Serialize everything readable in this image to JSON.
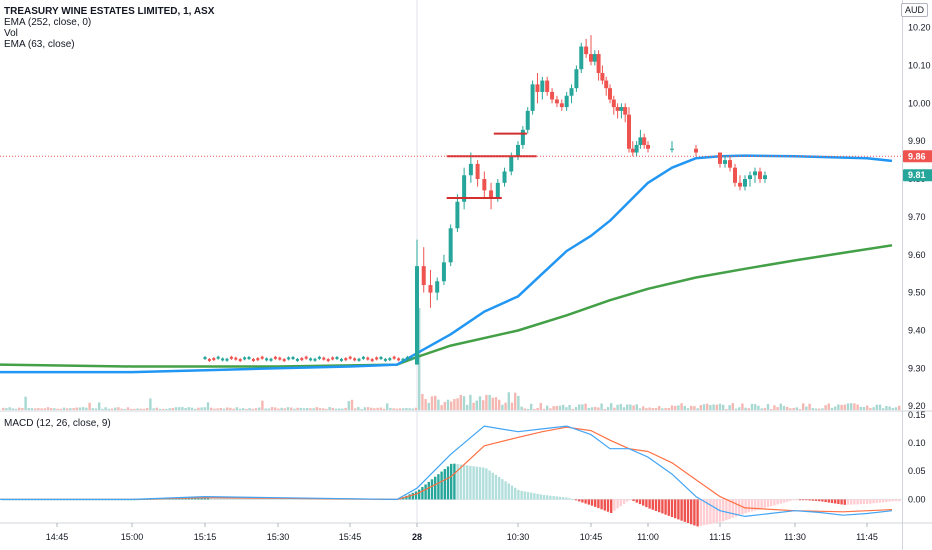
{
  "legend": {
    "symbol": "TREASURY WINE ESTATES LIMITED, 1, ASX",
    "ema1": "EMA (252, close, 0)",
    "vol": "Vol",
    "ema2": "EMA (63, close)",
    "macd": "MACD (12, 26, close, 9)"
  },
  "currency": "AUD",
  "colors": {
    "up": "#26a69a",
    "down": "#ef5350",
    "ema_fast": "#2196f3",
    "ema_slow": "#43a047",
    "macd_line": "#42a5f5",
    "signal_line": "#ff7043",
    "hist_up_strong": "#26a69a",
    "hist_up_weak": "#b2dfdb",
    "hist_down_strong": "#ef5350",
    "hist_down_weak": "#ffcdd2",
    "level_line": "#d32f2f",
    "price_tag": "#ef5350",
    "last_tag": "#26a69a"
  },
  "chart_data": [
    {
      "type": "candlestick",
      "title": "TREASURY WINE ESTATES LIMITED, 1, ASX",
      "y_axis": {
        "ticks": [
          "10.20",
          "10.10",
          "10.00",
          "9.90",
          "9.80",
          "9.70",
          "9.60",
          "9.50",
          "9.40",
          "9.30",
          "9.20"
        ],
        "ylim": [
          9.19,
          10.22
        ]
      },
      "x_axis": {
        "ticks": [
          "14:45",
          "15:00",
          "15:15",
          "15:30",
          "15:45",
          "28",
          "10:30",
          "10:45",
          "11:00",
          "11:15",
          "11:30",
          "11:45"
        ]
      },
      "price_labels": {
        "marker": "9.86",
        "last": "9.81"
      },
      "horizontal_levels": [
        {
          "price": 9.92,
          "from": "10:27",
          "to": "10:31"
        },
        {
          "price": 9.86,
          "from": "10:20",
          "to": "10:33"
        },
        {
          "price": 9.75,
          "from": "10:20",
          "to": "10:27"
        }
      ],
      "series": [
        {
          "name": "EMA (252, close, 0)",
          "x": [
            "14:35",
            "14:45",
            "15:00",
            "15:15",
            "15:30",
            "15:45",
            "15:55",
            "10:15",
            "10:20",
            "10:25",
            "10:30",
            "10:35",
            "10:40",
            "10:45",
            "10:50",
            "10:55",
            "11:00",
            "11:05",
            "11:10",
            "11:15",
            "11:20",
            "11:30",
            "11:45",
            "11:50"
          ],
          "values": [
            9.29,
            9.29,
            9.29,
            9.295,
            9.3,
            9.305,
            9.31,
            9.34,
            9.39,
            9.45,
            9.49,
            9.55,
            9.61,
            9.65,
            9.69,
            9.74,
            9.79,
            9.83,
            9.855,
            9.86,
            9.862,
            9.86,
            9.855,
            9.848
          ]
        },
        {
          "name": "EMA (63, close)",
          "x": [
            "14:35",
            "15:00",
            "15:30",
            "15:55",
            "10:15",
            "10:20",
            "10:30",
            "10:40",
            "10:50",
            "11:00",
            "11:10",
            "11:20",
            "11:30",
            "11:40",
            "11:50"
          ],
          "values": [
            9.31,
            9.305,
            9.305,
            9.31,
            9.33,
            9.36,
            9.4,
            9.44,
            9.48,
            9.51,
            9.54,
            9.563,
            9.585,
            9.605,
            9.625
          ]
        }
      ],
      "ohlc": [
        [
          "15:15",
          9.31,
          9.32,
          9.31,
          9.32
        ],
        [
          "15:20",
          9.32,
          9.34,
          9.31,
          9.33
        ],
        [
          "15:30",
          9.32,
          9.33,
          9.31,
          9.32
        ],
        [
          "15:45",
          9.32,
          9.33,
          9.31,
          9.33
        ],
        [
          "10:15",
          9.31,
          9.64,
          9.31,
          9.57
        ],
        [
          "10:16",
          9.57,
          9.62,
          9.5,
          9.52
        ],
        [
          "10:17",
          9.52,
          9.56,
          9.46,
          9.5
        ],
        [
          "10:18",
          9.5,
          9.54,
          9.48,
          9.53
        ],
        [
          "10:19",
          9.53,
          9.6,
          9.52,
          9.58
        ],
        [
          "10:20",
          9.58,
          9.68,
          9.57,
          9.67
        ],
        [
          "10:21",
          9.67,
          9.76,
          9.66,
          9.74
        ],
        [
          "10:22",
          9.74,
          9.83,
          9.72,
          9.81
        ],
        [
          "10:23",
          9.81,
          9.87,
          9.79,
          9.84
        ],
        [
          "10:24",
          9.84,
          9.85,
          9.78,
          9.8
        ],
        [
          "10:25",
          9.8,
          9.82,
          9.75,
          9.77
        ],
        [
          "10:26",
          9.77,
          9.79,
          9.72,
          9.75
        ],
        [
          "10:27",
          9.75,
          9.8,
          9.74,
          9.79
        ],
        [
          "10:28",
          9.79,
          9.83,
          9.78,
          9.82
        ],
        [
          "10:29",
          9.82,
          9.87,
          9.81,
          9.86
        ],
        [
          "10:30",
          9.86,
          9.9,
          9.85,
          9.89
        ],
        [
          "10:31",
          9.89,
          9.94,
          9.88,
          9.93
        ],
        [
          "10:32",
          9.93,
          9.99,
          9.92,
          9.98
        ],
        [
          "10:33",
          9.98,
          10.06,
          9.97,
          10.05
        ],
        [
          "10:34",
          10.05,
          10.08,
          10.0,
          10.03
        ],
        [
          "10:35",
          10.03,
          10.07,
          10.01,
          10.06
        ],
        [
          "10:36",
          10.06,
          10.07,
          10.02,
          10.03
        ],
        [
          "10:37",
          10.03,
          10.04,
          10.0,
          10.01
        ],
        [
          "10:38",
          10.01,
          10.02,
          9.99,
          10.0
        ],
        [
          "10:39",
          10.0,
          10.01,
          9.98,
          9.99
        ],
        [
          "10:40",
          9.99,
          10.03,
          9.98,
          10.02
        ],
        [
          "10:41",
          10.02,
          10.05,
          10.0,
          10.04
        ],
        [
          "10:42",
          10.04,
          10.1,
          10.03,
          10.09
        ],
        [
          "10:43",
          10.09,
          10.16,
          10.08,
          10.15
        ],
        [
          "10:44",
          10.15,
          10.17,
          10.12,
          10.13
        ],
        [
          "10:45",
          10.13,
          10.18,
          10.1,
          10.11
        ],
        [
          "10:46",
          10.11,
          10.14,
          10.1,
          10.13
        ],
        [
          "10:47",
          10.13,
          10.14,
          10.06,
          10.08
        ],
        [
          "10:48",
          10.08,
          10.1,
          10.05,
          10.06
        ],
        [
          "10:49",
          10.06,
          10.07,
          10.02,
          10.04
        ],
        [
          "10:50",
          10.04,
          10.05,
          10.0,
          10.01
        ],
        [
          "10:51",
          10.01,
          10.02,
          9.97,
          9.99
        ],
        [
          "10:52",
          9.99,
          10.0,
          9.96,
          9.98
        ],
        [
          "10:53",
          9.98,
          10.0,
          9.96,
          9.99
        ],
        [
          "10:54",
          9.99,
          10.0,
          9.95,
          9.97
        ],
        [
          "10:55",
          9.97,
          9.99,
          9.87,
          9.88
        ],
        [
          "10:56",
          9.88,
          9.9,
          9.86,
          9.87
        ],
        [
          "10:57",
          9.87,
          9.9,
          9.86,
          9.89
        ],
        [
          "10:58",
          9.89,
          9.93,
          9.88,
          9.91
        ],
        [
          "10:59",
          9.91,
          9.92,
          9.88,
          9.89
        ],
        [
          "11:00",
          9.89,
          9.9,
          9.87,
          9.88
        ],
        [
          "11:05",
          9.88,
          9.9,
          9.87,
          9.88
        ],
        [
          "11:10",
          9.88,
          9.89,
          9.86,
          9.87
        ],
        [
          "11:15",
          9.87,
          9.87,
          9.83,
          9.84
        ],
        [
          "11:16",
          9.84,
          9.86,
          9.83,
          9.85
        ],
        [
          "11:17",
          9.85,
          9.86,
          9.82,
          9.83
        ],
        [
          "11:18",
          9.83,
          9.84,
          9.78,
          9.79
        ],
        [
          "11:19",
          9.79,
          9.81,
          9.77,
          9.78
        ],
        [
          "11:20",
          9.78,
          9.81,
          9.77,
          9.8
        ],
        [
          "11:21",
          9.8,
          9.82,
          9.78,
          9.81
        ],
        [
          "11:22",
          9.81,
          9.83,
          9.79,
          9.82
        ],
        [
          "11:23",
          9.82,
          9.83,
          9.79,
          9.8
        ],
        [
          "11:24",
          9.8,
          9.82,
          9.79,
          9.81
        ]
      ]
    },
    {
      "type": "bar",
      "title": "Vol",
      "note": "volume histogram",
      "spike": "10:15"
    },
    {
      "type": "line",
      "title": "MACD (12, 26, close, 9)",
      "y_axis": {
        "ticks": [
          "0.15",
          "0.10",
          "0.05",
          "0.00"
        ],
        "ylim": [
          -0.04,
          0.155
        ]
      },
      "series": [
        {
          "name": "MACD",
          "x": [
            "14:35",
            "15:00",
            "15:15",
            "15:30",
            "15:55",
            "10:15",
            "10:20",
            "10:25",
            "10:30",
            "10:35",
            "10:40",
            "10:45",
            "10:50",
            "10:55",
            "11:00",
            "11:05",
            "11:10",
            "11:15",
            "11:20",
            "11:25",
            "11:30",
            "11:35",
            "11:40",
            "11:45",
            "11:50"
          ],
          "values": [
            0.0,
            0.0,
            0.005,
            0.003,
            0.0,
            0.02,
            0.08,
            0.13,
            0.12,
            0.125,
            0.13,
            0.115,
            0.09,
            0.09,
            0.075,
            0.045,
            0.005,
            -0.02,
            -0.03,
            -0.025,
            -0.02,
            -0.023,
            -0.028,
            -0.025,
            -0.02
          ]
        },
        {
          "name": "Signal",
          "x": [
            "14:35",
            "15:00",
            "15:15",
            "15:30",
            "15:55",
            "10:15",
            "10:20",
            "10:25",
            "10:30",
            "10:35",
            "10:40",
            "10:45",
            "10:50",
            "10:55",
            "11:00",
            "11:05",
            "11:10",
            "11:15",
            "11:20",
            "11:30",
            "11:40",
            "11:50"
          ],
          "values": [
            0.0,
            0.0,
            0.003,
            0.002,
            0.0,
            0.01,
            0.04,
            0.095,
            0.11,
            0.12,
            0.128,
            0.122,
            0.105,
            0.09,
            0.085,
            0.065,
            0.035,
            0.005,
            -0.015,
            -0.02,
            -0.022,
            -0.018
          ]
        }
      ]
    }
  ]
}
